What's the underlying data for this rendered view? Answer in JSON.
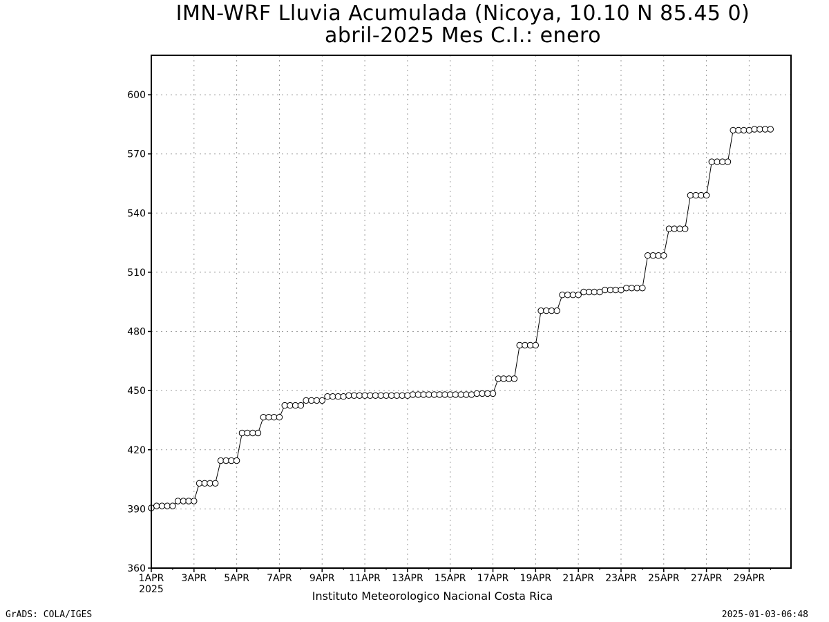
{
  "chart_data": {
    "type": "line",
    "title": "IMN-WRF  Lluvia Acumulada  (Nicoya, 10.10  N 85.45  0)",
    "subtitle": "abril-2025 Mes C.I.: enero",
    "xlabel": "",
    "ylabel": "",
    "credit": "Instituto Meteorologico Nacional Costa Rica",
    "ylim": [
      360,
      620
    ],
    "xlim": [
      1,
      30.96
    ],
    "yticks": [
      360,
      390,
      420,
      450,
      480,
      510,
      540,
      570,
      600
    ],
    "xticks": [
      {
        "day": 1,
        "label": "1APR"
      },
      {
        "day": 3,
        "label": "3APR"
      },
      {
        "day": 5,
        "label": "5APR"
      },
      {
        "day": 7,
        "label": "7APR"
      },
      {
        "day": 9,
        "label": "9APR"
      },
      {
        "day": 11,
        "label": "11APR"
      },
      {
        "day": 13,
        "label": "13APR"
      },
      {
        "day": 15,
        "label": "15APR"
      },
      {
        "day": 17,
        "label": "17APR"
      },
      {
        "day": 19,
        "label": "19APR"
      },
      {
        "day": 21,
        "label": "21APR"
      },
      {
        "day": 23,
        "label": "23APR"
      },
      {
        "day": 25,
        "label": "25APR"
      },
      {
        "day": 27,
        "label": "27APR"
      },
      {
        "day": 29,
        "label": "29APR"
      }
    ],
    "year_label": "2025",
    "grid": true,
    "points_per_day": 4,
    "series": [
      {
        "values": [
          390.5,
          391.5,
          391.5,
          391.5,
          391.5,
          394,
          394,
          394,
          394,
          403,
          403,
          403,
          403,
          414.5,
          414.5,
          414.5,
          414.5,
          428.5,
          428.5,
          428.5,
          428.5,
          436.5,
          436.5,
          436.5,
          436.5,
          442.5,
          442.5,
          442.5,
          442.5,
          445,
          445,
          445,
          445,
          447,
          447,
          447,
          447,
          447.5,
          447.5,
          447.5,
          447.5,
          447.5,
          447.5,
          447.5,
          447.5,
          447.5,
          447.5,
          447.5,
          447.5,
          448,
          448,
          448,
          448,
          448,
          448,
          448,
          448,
          448,
          448,
          448,
          448,
          448.5,
          448.5,
          448.5,
          448.5,
          456,
          456,
          456,
          456,
          473,
          473,
          473,
          473,
          490.5,
          490.5,
          490.5,
          490.5,
          498.5,
          498.5,
          498.5,
          498.5,
          500,
          500,
          500,
          500,
          501,
          501,
          501,
          501,
          502,
          502,
          502,
          502,
          518.5,
          518.5,
          518.5,
          518.5,
          532,
          532,
          532,
          532,
          549,
          549,
          549,
          549,
          566,
          566,
          566,
          566,
          582,
          582,
          582,
          582,
          582.5,
          582.5,
          582.5,
          582.5
        ]
      }
    ]
  },
  "footer": {
    "left": "GrADS: COLA/IGES",
    "right": "2025-01-03-06:48"
  }
}
